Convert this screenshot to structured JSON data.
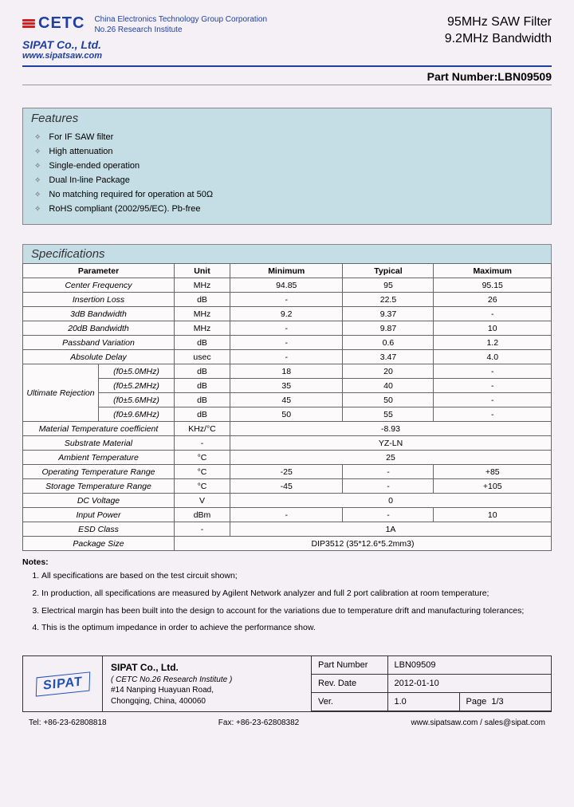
{
  "header": {
    "logo_text": "CETC",
    "logo_sub1": "China Electronics Technology Group Corporation",
    "logo_sub2": "No.26 Research Institute",
    "company": "SIPAT Co., Ltd.",
    "website": "www.sipatsaw.com",
    "product_line1": "95MHz SAW Filter",
    "product_line2": "9.2MHz Bandwidth",
    "partnum_label": "Part Number:",
    "partnum": "LBN09509"
  },
  "features": {
    "title": "Features",
    "items": [
      "For IF SAW filter",
      "High attenuation",
      "Single-ended operation",
      "Dual In-line Package",
      "No matching required for operation at 50Ω",
      "RoHS compliant (2002/95/EC). Pb-free"
    ]
  },
  "specs": {
    "title": "Specifications",
    "headers": [
      "Parameter",
      "Unit",
      "Minimum",
      "Typical",
      "Maximum"
    ],
    "rows": [
      {
        "param": "Center Frequency",
        "unit": "MHz",
        "min": "94.85",
        "typ": "95",
        "max": "95.15"
      },
      {
        "param": "Insertion Loss",
        "unit": "dB",
        "min": "-",
        "typ": "22.5",
        "max": "26"
      },
      {
        "param": "3dB Bandwidth",
        "unit": "MHz",
        "min": "9.2",
        "typ": "9.37",
        "max": "-"
      },
      {
        "param": "20dB Bandwidth",
        "unit": "MHz",
        "min": "-",
        "typ": "9.87",
        "max": "10"
      },
      {
        "param": "Passband Variation",
        "unit": "dB",
        "min": "-",
        "typ": "0.6",
        "max": "1.2"
      },
      {
        "param": "Absolute Delay",
        "unit": "usec",
        "min": "-",
        "typ": "3.47",
        "max": "4.0"
      }
    ],
    "ultimate_label": "Ultimate Rejection",
    "ultimate": [
      {
        "cond": "(f0±5.0MHz)",
        "unit": "dB",
        "min": "18",
        "typ": "20",
        "max": "-"
      },
      {
        "cond": "(f0±5.2MHz)",
        "unit": "dB",
        "min": "35",
        "typ": "40",
        "max": "-"
      },
      {
        "cond": "(f0±5.6MHz)",
        "unit": "dB",
        "min": "45",
        "typ": "50",
        "max": "-"
      },
      {
        "cond": "(f0±9.6MHz)",
        "unit": "dB",
        "min": "50",
        "typ": "55",
        "max": "-"
      }
    ],
    "rows2": [
      {
        "param": "Material Temperature coefficient",
        "unit": "KHz/°C",
        "span": "-8.93"
      },
      {
        "param": "Substrate Material",
        "unit": "-",
        "span": "YZ-LN"
      },
      {
        "param": "Ambient Temperature",
        "unit": "°C",
        "span": "25"
      }
    ],
    "rows3": [
      {
        "param": "Operating Temperature Range",
        "unit": "°C",
        "min": "-25",
        "typ": "-",
        "max": "+85"
      },
      {
        "param": "Storage Temperature Range",
        "unit": "°C",
        "min": "-45",
        "typ": "-",
        "max": "+105"
      }
    ],
    "rows4": [
      {
        "param": "DC Voltage",
        "unit": "V",
        "span": "0"
      }
    ],
    "rows5": [
      {
        "param": "Input Power",
        "unit": "dBm",
        "min": "-",
        "typ": "-",
        "max": "10"
      }
    ],
    "rows6": [
      {
        "param": "ESD Class",
        "unit": "-",
        "span": "1A"
      },
      {
        "param": "Package Size",
        "unit": "",
        "span": "DIP3512 (35*12.6*5.2mm3)",
        "unitspan": true
      }
    ]
  },
  "notes": {
    "title": "Notes:",
    "items": [
      "All specifications are based on the test circuit shown;",
      "In production, all specifications are measured by Agilent Network analyzer and full 2 port calibration at room temperature;",
      "Electrical margin has been built into the design to account for the variations due to temperature drift and manufacturing tolerances;",
      "This is the optimum impedance in order to achieve the performance show."
    ]
  },
  "footer": {
    "logo": "SIPAT",
    "company": "SIPAT Co., Ltd.",
    "inst": "( CETC No.26 Research Institute )",
    "addr1": "#14 Nanping Huayuan Road,",
    "addr2": "Chongqing, China, 400060",
    "rows": [
      [
        "Part Number",
        "LBN09509"
      ],
      [
        "Rev. Date",
        "2012-01-10"
      ]
    ],
    "ver_label": "Ver.",
    "ver": "1.0",
    "page_label": "Page",
    "page": "1/3",
    "tel": "Tel: +86-23-62808818",
    "fax": "Fax: +86-23-62808382",
    "web": "www.sipatsaw.com / sales@sipat.com"
  }
}
